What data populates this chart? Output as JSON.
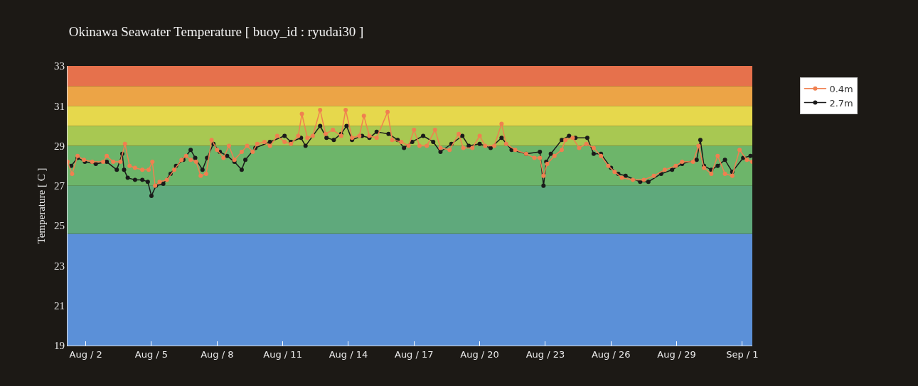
{
  "chart_data": {
    "type": "line",
    "title": "Okinawa Seawater Temperature [ buoy_id : ryudai30 ]",
    "ylabel": "Temperature [ C ]",
    "xlim": [
      "--08-01T04:00",
      "--09-01T11:00"
    ],
    "xticks": [
      {
        "value": "--08-02",
        "label": "Aug / 2"
      },
      {
        "value": "--08-05",
        "label": "Aug / 5"
      },
      {
        "value": "--08-08",
        "label": "Aug / 8"
      },
      {
        "value": "--08-11",
        "label": "Aug / 11"
      },
      {
        "value": "--08-14",
        "label": "Aug / 14"
      },
      {
        "value": "--08-17",
        "label": "Aug / 17"
      },
      {
        "value": "--08-20",
        "label": "Aug / 20"
      },
      {
        "value": "--08-23",
        "label": "Aug / 23"
      },
      {
        "value": "--08-26",
        "label": "Aug / 26"
      },
      {
        "value": "--08-29",
        "label": "Aug / 29"
      },
      {
        "value": "--09-01",
        "label": "Sep / 1"
      }
    ],
    "ylim": [
      19,
      33
    ],
    "yticks": [
      19,
      21,
      23,
      25,
      27,
      29,
      31,
      33
    ],
    "grid": false,
    "legend": "top right",
    "marker": "circle",
    "line_style": "solid",
    "bands": [
      {
        "axis": "y",
        "from": 19,
        "to": 24.6,
        "color": "#5b90d8"
      },
      {
        "axis": "y",
        "from": 24.6,
        "to": 27,
        "color": "#5fa97c"
      },
      {
        "axis": "y",
        "from": 27,
        "to": 29,
        "color": "#6db56a"
      },
      {
        "axis": "y",
        "from": 29,
        "to": 30,
        "color": "#a8c852"
      },
      {
        "axis": "y",
        "from": 30,
        "to": 31,
        "color": "#e6d84c"
      },
      {
        "axis": "y",
        "from": 31,
        "to": 32,
        "color": "#eca446"
      },
      {
        "axis": "y",
        "from": 32,
        "to": 33,
        "color": "#e6714c"
      }
    ],
    "series": [
      {
        "name": "2.7m",
        "color": "#1a1a1a",
        "x": [
          "--08-01T08:00",
          "--08-01T15:00",
          "--08-01T23:00",
          "--08-02T11:00",
          "--08-02T23:00",
          "--08-03T10:00",
          "--08-03T16:00",
          "--08-03T18:00",
          "--08-03T22:00",
          "--08-04T06:00",
          "--08-04T14:00",
          "--08-04T20:00",
          "--08-05T00:00",
          "--08-05T05:00",
          "--08-05T13:00",
          "--08-05T21:00",
          "--08-06T03:00",
          "--08-06T11:00",
          "--08-06T19:00",
          "--08-07T00:00",
          "--08-07T08:00",
          "--08-07T13:00",
          "--08-07T20:00",
          "--08-08T03:00",
          "--08-08T11:00",
          "--08-08T19:00",
          "--08-09T03:00",
          "--08-09T07:00",
          "--08-09T18:00",
          "--08-10T10:00",
          "--08-11T02:00",
          "--08-11T09:00",
          "--08-11T20:00",
          "--08-12T01:00",
          "--08-12T17:00",
          "--08-13T00:00",
          "--08-13T08:00",
          "--08-13T16:00",
          "--08-13T22:00",
          "--08-14T04:00",
          "--08-14T15:00",
          "--08-14T23:00",
          "--08-15T07:00",
          "--08-15T20:00",
          "--08-16T06:00",
          "--08-16T13:00",
          "--08-16T22:00",
          "--08-17T10:00",
          "--08-17T21:00",
          "--08-18T05:00",
          "--08-18T17:00",
          "--08-19T05:00",
          "--08-19T12:00",
          "--08-20T00:00",
          "--08-20T12:00",
          "--08-21T00:00",
          "--08-21T11:00",
          "--08-22T03:00",
          "--08-22T18:00",
          "--08-22T22:00",
          "--08-23T01:00",
          "--08-23T06:00",
          "--08-23T18:00",
          "--08-24T02:00",
          "--08-24T09:00",
          "--08-24T22:00",
          "--08-25T05:00",
          "--08-25T13:00",
          "--08-26T00:00",
          "--08-26T08:00",
          "--08-26T16:00",
          "--08-27T08:00",
          "--08-27T17:00",
          "--08-28T07:00",
          "--08-28T19:00",
          "--08-29T06:00",
          "--08-29T22:00",
          "--08-30T02:00",
          "--08-30T06:00",
          "--08-30T14:00",
          "--08-30T21:00",
          "--08-31T05:00",
          "--08-31T13:00",
          "--09-01T01:00",
          "--09-01T09:00"
        ],
        "values": [
          28.0,
          28.4,
          28.2,
          28.1,
          28.2,
          27.8,
          28.6,
          27.8,
          27.4,
          27.3,
          27.3,
          27.2,
          26.5,
          27.0,
          27.1,
          27.6,
          28.0,
          28.3,
          28.8,
          28.4,
          27.8,
          28.4,
          29.1,
          28.7,
          28.5,
          28.2,
          27.8,
          28.3,
          28.9,
          29.2,
          29.5,
          29.2,
          29.4,
          29.0,
          30.0,
          29.4,
          29.3,
          29.6,
          30.0,
          29.3,
          29.5,
          29.4,
          29.7,
          29.6,
          29.3,
          28.9,
          29.2,
          29.5,
          29.2,
          28.7,
          29.1,
          29.5,
          29.0,
          29.1,
          28.9,
          29.4,
          28.8,
          28.6,
          28.7,
          27.0,
          28.2,
          28.6,
          29.3,
          29.5,
          29.4,
          29.4,
          28.6,
          28.6,
          27.9,
          27.6,
          27.5,
          27.2,
          27.2,
          27.6,
          27.8,
          28.1,
          28.3,
          29.3,
          28.0,
          27.8,
          28.0,
          28.3,
          27.7,
          28.4,
          28.5
        ]
      },
      {
        "name": "0.4m",
        "color": "#f08050",
        "x": [
          "--08-01T04:00",
          "--08-01T09:00",
          "--08-01T15:00",
          "--08-01T22:00",
          "--08-02T07:00",
          "--08-02T19:00",
          "--08-02T23:00",
          "--08-03T06:00",
          "--08-03T14:00",
          "--08-03T19:00",
          "--08-04T00:00",
          "--08-04T06:00",
          "--08-04T14:00",
          "--08-04T21:00",
          "--08-05T01:00",
          "--08-05T04:00",
          "--08-05T09:00",
          "--08-05T17:00",
          "--08-06T01:00",
          "--08-06T09:00",
          "--08-06T14:00",
          "--08-06T19:00",
          "--08-07T01:00",
          "--08-07T06:00",
          "--08-07T12:00",
          "--08-07T18:00",
          "--08-08T00:00",
          "--08-08T07:00",
          "--08-08T13:00",
          "--08-08T19:00",
          "--08-09T03:00",
          "--08-09T09:00",
          "--08-09T15:00",
          "--08-09T20:00",
          "--08-10T04:00",
          "--08-10T10:00",
          "--08-10T18:00",
          "--08-11T02:00",
          "--08-11T09:00",
          "--08-11T17:00",
          "--08-11T21:00",
          "--08-12T03:00",
          "--08-12T09:00",
          "--08-12T17:00",
          "--08-12T23:00",
          "--08-13T07:00",
          "--08-13T16:00",
          "--08-13T21:00",
          "--08-14T04:00",
          "--08-14T12:00",
          "--08-14T17:00",
          "--08-14T23:00",
          "--08-15T07:00",
          "--08-15T19:00",
          "--08-16T00:00",
          "--08-16T10:00",
          "--08-16T18:00",
          "--08-17T00:00",
          "--08-17T06:00",
          "--08-17T14:00",
          "--08-17T23:00",
          "--08-18T05:00",
          "--08-18T15:00",
          "--08-19T01:00",
          "--08-19T06:00",
          "--08-19T16:00",
          "--08-20T00:00",
          "--08-20T06:00",
          "--08-20T16:00",
          "--08-21T00:00",
          "--08-21T05:00",
          "--08-21T15:00",
          "--08-22T03:00",
          "--08-22T12:00",
          "--08-22T18:00",
          "--08-22T22:00",
          "--08-23T02:00",
          "--08-23T10:00",
          "--08-23T18:00",
          "--08-23T22:00",
          "--08-24T06:00",
          "--08-24T13:00",
          "--08-24T21:00",
          "--08-25T05:00",
          "--08-25T13:00",
          "--08-25T21:00",
          "--08-26T04:00",
          "--08-26T12:00",
          "--08-27T00:00",
          "--08-27T12:00",
          "--08-27T23:00",
          "--08-28T11:00",
          "--08-28T23:00",
          "--08-29T06:00",
          "--08-29T18:00",
          "--08-30T00:00",
          "--08-30T06:00",
          "--08-30T14:00",
          "--08-30T21:00",
          "--08-31T05:00",
          "--08-31T13:00",
          "--08-31T21:00",
          "--09-01T05:00",
          "--09-01T11:00"
        ],
        "values": [
          28.2,
          27.6,
          28.5,
          28.3,
          28.2,
          28.2,
          28.5,
          28.2,
          28.2,
          29.1,
          28.0,
          27.9,
          27.8,
          27.8,
          28.2,
          27.0,
          27.2,
          27.3,
          27.8,
          28.3,
          28.5,
          28.3,
          28.2,
          27.5,
          27.6,
          29.3,
          28.8,
          28.4,
          29.0,
          28.3,
          28.7,
          29.0,
          28.7,
          29.1,
          29.2,
          29.0,
          29.5,
          29.2,
          29.1,
          29.5,
          30.6,
          29.4,
          29.5,
          30.8,
          29.6,
          29.8,
          29.5,
          30.8,
          29.4,
          29.5,
          30.5,
          29.5,
          29.4,
          30.7,
          29.3,
          29.2,
          29.0,
          29.8,
          29.0,
          29.0,
          29.8,
          28.9,
          28.8,
          29.6,
          28.9,
          28.9,
          29.5,
          29.0,
          29.0,
          30.1,
          29.1,
          28.8,
          28.6,
          28.4,
          28.4,
          27.5,
          28.1,
          28.5,
          28.8,
          29.3,
          29.4,
          28.9,
          29.1,
          28.9,
          28.5,
          28.0,
          27.7,
          27.4,
          27.3,
          27.3,
          27.5,
          27.8,
          28.0,
          28.2,
          28.2,
          29.0,
          27.9,
          27.6,
          28.5,
          27.6,
          27.5,
          28.8,
          28.3,
          28.2
        ]
      }
    ]
  }
}
